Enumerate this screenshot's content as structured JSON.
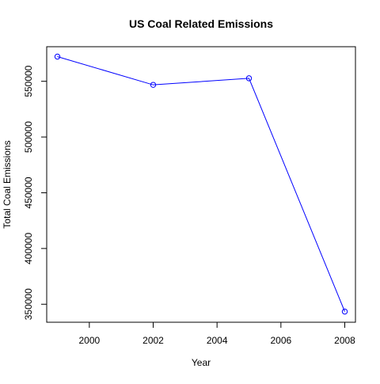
{
  "chart_data": {
    "type": "line",
    "title": "US Coal Related Emissions",
    "xlabel": "Year",
    "ylabel": "Total Coal Emissions",
    "x": [
      1999,
      2002,
      2005,
      2008
    ],
    "series": [
      {
        "name": "Total Coal Emissions",
        "values": [
          572126,
          546789,
          552675,
          343432
        ],
        "color": "#0000ff"
      }
    ],
    "xlim": [
      1999,
      2008
    ],
    "ylim": [
      343432,
      572126
    ],
    "xticks": [
      2000,
      2002,
      2004,
      2006,
      2008
    ],
    "yticks": [
      350000,
      400000,
      450000,
      500000,
      550000
    ],
    "xtick_labels": [
      "2000",
      "2002",
      "2004",
      "2006",
      "2008"
    ],
    "ytick_labels": [
      "350000",
      "400000",
      "450000",
      "500000",
      "550000"
    ],
    "grid": false
  }
}
